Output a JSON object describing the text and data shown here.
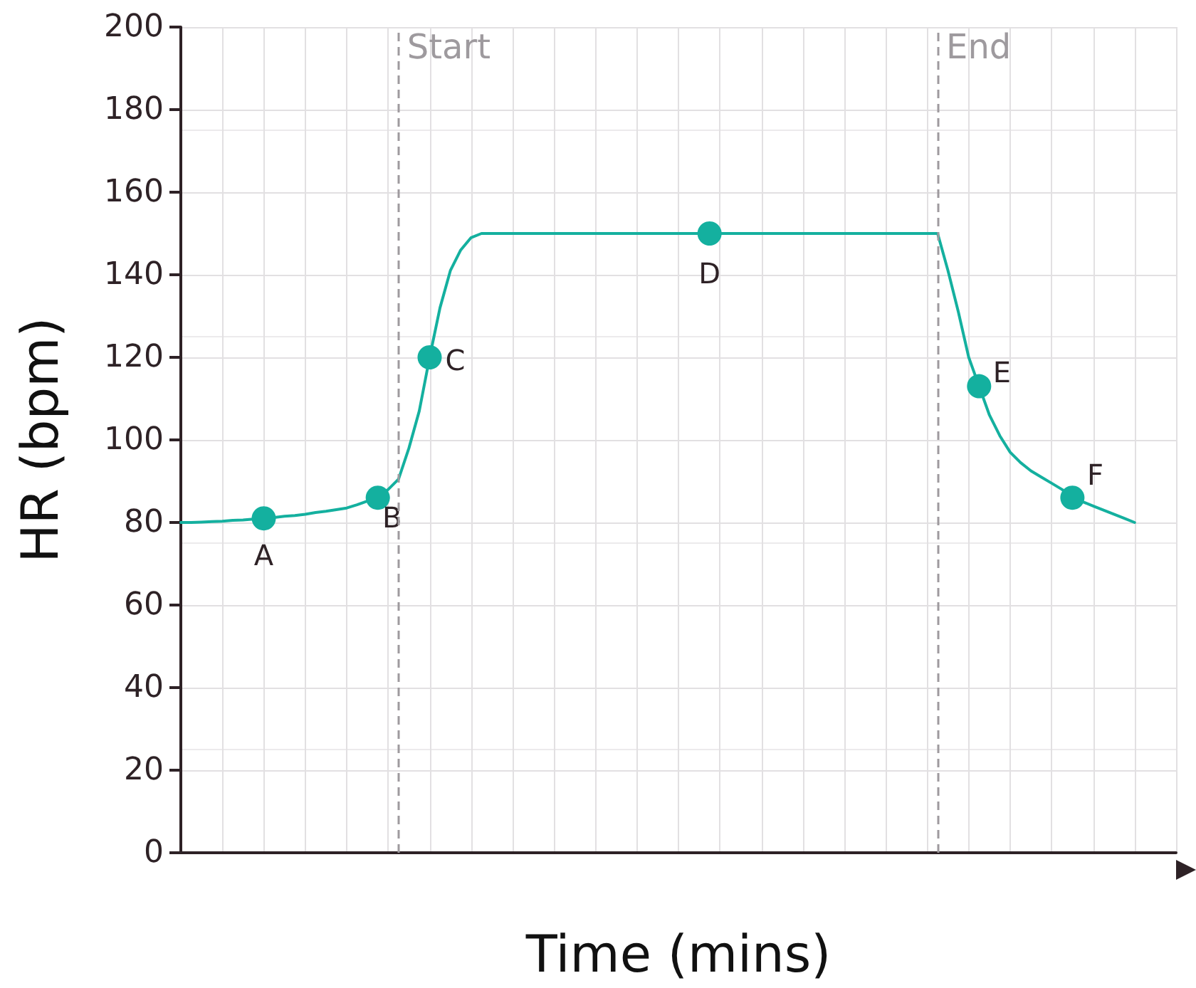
{
  "chart_data": {
    "type": "line",
    "xlabel": "Time (mins)",
    "ylabel": "HR (bpm)",
    "categories": [
      null,
      null,
      null,
      null,
      null,
      null,
      null,
      null,
      null,
      null,
      null,
      null,
      null,
      null,
      null,
      null,
      null,
      null,
      null,
      null,
      null,
      null,
      null,
      null,
      null,
      null,
      null,
      null,
      null,
      null,
      null,
      null,
      null,
      null,
      null,
      null,
      null,
      null,
      null,
      null,
      null,
      null,
      null,
      null,
      null,
      null,
      null,
      null,
      null,
      null,
      null,
      null,
      null,
      null,
      null,
      null,
      null,
      null,
      null,
      null,
      null,
      null,
      null,
      null,
      null,
      null,
      null,
      null,
      null,
      null,
      null,
      null,
      null,
      null,
      null,
      null,
      null,
      null,
      null,
      null,
      null,
      null,
      null,
      null,
      null,
      null,
      null,
      null,
      null,
      null,
      null,
      null,
      null,
      null,
      null,
      null,
      null
    ],
    "ylim": [
      0,
      200
    ],
    "yticks": [
      0,
      20,
      40,
      60,
      80,
      100,
      120,
      140,
      160,
      180,
      200
    ],
    "grid": true,
    "line_style": "solid",
    "series": [
      {
        "color": "#14b09f",
        "marker": "none",
        "values": [
          80,
          80,
          80.1,
          80.2,
          80.3,
          80.5,
          80.6,
          80.8,
          81,
          81.2,
          81.5,
          81.7,
          82,
          82.4,
          82.7,
          83.1,
          83.5,
          84.3,
          85.2,
          86,
          88,
          90.5,
          98,
          107,
          120,
          132,
          141,
          146,
          149,
          150,
          150,
          150,
          150,
          150,
          150,
          150,
          150,
          150,
          150,
          150,
          150,
          150,
          150,
          150,
          150,
          150,
          150,
          150,
          150,
          150,
          150,
          150,
          150,
          150,
          150,
          150,
          150,
          150,
          150,
          150,
          150,
          150,
          150,
          150,
          150,
          150,
          150,
          150,
          150,
          150,
          150,
          150,
          150,
          150,
          141,
          131,
          120,
          113,
          106,
          101,
          97,
          94.5,
          92.5,
          91,
          89.5,
          88,
          86,
          85,
          84,
          83,
          82,
          81,
          80,
          null,
          null,
          null,
          null
        ]
      },
      {
        "type": "scatter",
        "color": "#14b09f",
        "marker": "circle",
        "values": [
          null,
          null,
          null,
          null,
          null,
          null,
          null,
          null,
          81,
          null,
          null,
          null,
          null,
          null,
          null,
          null,
          null,
          null,
          null,
          86,
          null,
          null,
          null,
          null,
          120,
          null,
          null,
          null,
          null,
          null,
          null,
          null,
          null,
          null,
          null,
          null,
          null,
          null,
          null,
          null,
          null,
          null,
          null,
          null,
          null,
          null,
          null,
          null,
          null,
          null,
          null,
          150,
          null,
          null,
          null,
          null,
          null,
          null,
          null,
          null,
          null,
          null,
          null,
          null,
          null,
          null,
          null,
          null,
          null,
          null,
          null,
          null,
          null,
          null,
          null,
          null,
          null,
          113,
          null,
          null,
          null,
          null,
          null,
          null,
          null,
          null,
          86,
          null,
          null,
          null,
          null,
          null,
          null,
          null,
          null,
          null,
          null
        ],
        "value_labels": [
          null,
          null,
          null,
          null,
          null,
          null,
          null,
          null,
          "A",
          null,
          null,
          null,
          null,
          null,
          null,
          null,
          null,
          null,
          null,
          "B",
          null,
          null,
          null,
          null,
          "C",
          null,
          null,
          null,
          null,
          null,
          null,
          null,
          null,
          null,
          null,
          null,
          null,
          null,
          null,
          null,
          null,
          null,
          null,
          null,
          null,
          null,
          null,
          null,
          null,
          null,
          null,
          "D",
          null,
          null,
          null,
          null,
          null,
          null,
          null,
          null,
          null,
          null,
          null,
          null,
          null,
          null,
          null,
          null,
          null,
          null,
          null,
          null,
          null,
          null,
          null,
          null,
          null,
          "E",
          null,
          null,
          null,
          null,
          null,
          null,
          null,
          null,
          "F",
          null,
          null,
          null,
          null,
          null,
          null,
          null,
          null,
          null,
          null
        ]
      }
    ],
    "annotations": [
      "Start",
      "End"
    ]
  }
}
